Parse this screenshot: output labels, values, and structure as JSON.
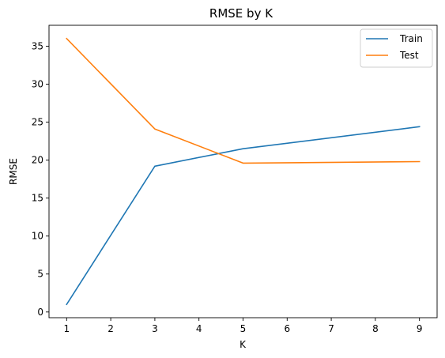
{
  "chart_data": {
    "type": "line",
    "title": "RMSE by K",
    "xlabel": "K",
    "ylabel": "RMSE",
    "x": [
      1,
      3,
      5,
      9
    ],
    "xlim": [
      0.6,
      9.4
    ],
    "ylim": [
      -0.75,
      37.75
    ],
    "xticks": [
      1,
      2,
      3,
      4,
      5,
      6,
      7,
      8,
      9
    ],
    "yticks": [
      0,
      5,
      10,
      15,
      20,
      25,
      30,
      35
    ],
    "grid": false,
    "legend_position": "top-right",
    "series": [
      {
        "name": "Train",
        "color": "#1f77b4",
        "values": [
          1.0,
          19.2,
          21.5,
          24.4
        ]
      },
      {
        "name": "Test",
        "color": "#ff7f0e",
        "values": [
          36.0,
          24.1,
          19.6,
          19.8
        ]
      }
    ]
  }
}
